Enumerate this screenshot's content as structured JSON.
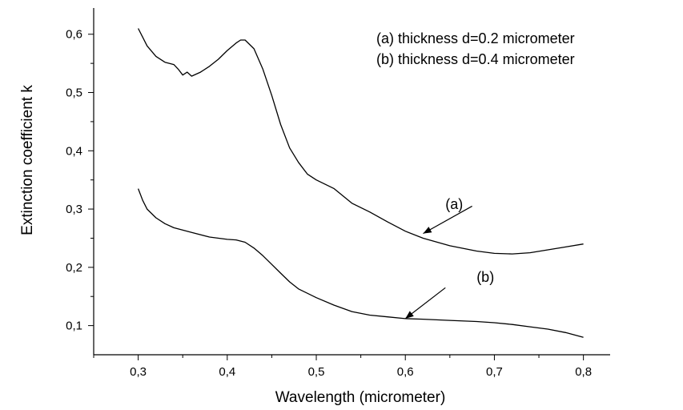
{
  "chart_data": {
    "type": "line",
    "title": "",
    "xlabel": "Wavelength (micrometer)",
    "ylabel": "Extinction coefficient k",
    "xlim": [
      0.25,
      0.83
    ],
    "ylim": [
      0.05,
      0.645
    ],
    "xticks": [
      0.3,
      0.4,
      0.5,
      0.6,
      0.7,
      0.8
    ],
    "xtick_labels": [
      "0,3",
      "0,4",
      "0,5",
      "0,6",
      "0,7",
      "0,8"
    ],
    "yticks": [
      0.1,
      0.2,
      0.3,
      0.4,
      0.5,
      0.6
    ],
    "ytick_labels": [
      "0,1",
      "0,2",
      "0,3",
      "0,4",
      "0,5",
      "0,6"
    ],
    "grid": false,
    "legend": {
      "position": "top-right",
      "entries": [
        "(a) thickness d=0.2 micrometer",
        "(b) thickness d=0.4 micrometer"
      ]
    },
    "series": [
      {
        "name": "(a)",
        "color": "#000000",
        "x": [
          0.3,
          0.305,
          0.31,
          0.32,
          0.33,
          0.34,
          0.345,
          0.35,
          0.355,
          0.36,
          0.37,
          0.38,
          0.39,
          0.4,
          0.41,
          0.415,
          0.42,
          0.43,
          0.44,
          0.45,
          0.46,
          0.47,
          0.48,
          0.49,
          0.5,
          0.52,
          0.54,
          0.56,
          0.58,
          0.6,
          0.62,
          0.65,
          0.68,
          0.7,
          0.72,
          0.74,
          0.76,
          0.78,
          0.8
        ],
        "y": [
          0.61,
          0.595,
          0.58,
          0.562,
          0.552,
          0.548,
          0.54,
          0.53,
          0.535,
          0.528,
          0.535,
          0.545,
          0.557,
          0.572,
          0.585,
          0.59,
          0.59,
          0.575,
          0.54,
          0.495,
          0.445,
          0.405,
          0.38,
          0.36,
          0.35,
          0.335,
          0.31,
          0.295,
          0.278,
          0.262,
          0.25,
          0.237,
          0.228,
          0.224,
          0.223,
          0.225,
          0.23,
          0.235,
          0.24
        ]
      },
      {
        "name": "(b)",
        "color": "#000000",
        "x": [
          0.3,
          0.305,
          0.31,
          0.32,
          0.33,
          0.34,
          0.36,
          0.38,
          0.4,
          0.41,
          0.42,
          0.43,
          0.44,
          0.45,
          0.46,
          0.47,
          0.48,
          0.5,
          0.52,
          0.54,
          0.56,
          0.58,
          0.6,
          0.62,
          0.65,
          0.68,
          0.7,
          0.72,
          0.74,
          0.76,
          0.78,
          0.8
        ],
        "y": [
          0.335,
          0.315,
          0.3,
          0.285,
          0.275,
          0.268,
          0.26,
          0.252,
          0.248,
          0.247,
          0.243,
          0.233,
          0.22,
          0.205,
          0.19,
          0.175,
          0.163,
          0.148,
          0.135,
          0.124,
          0.118,
          0.115,
          0.112,
          0.111,
          0.109,
          0.107,
          0.105,
          0.102,
          0.098,
          0.094,
          0.088,
          0.08
        ]
      }
    ],
    "annotations": [
      {
        "label": "(a)",
        "text_at": [
          0.645,
          0.3
        ],
        "arrow_from": [
          0.675,
          0.305
        ],
        "arrow_to": [
          0.62,
          0.258
        ]
      },
      {
        "label": "(b)",
        "text_at": [
          0.68,
          0.175
        ],
        "arrow_from": [
          0.645,
          0.165
        ],
        "arrow_to": [
          0.6,
          0.112
        ]
      }
    ]
  }
}
